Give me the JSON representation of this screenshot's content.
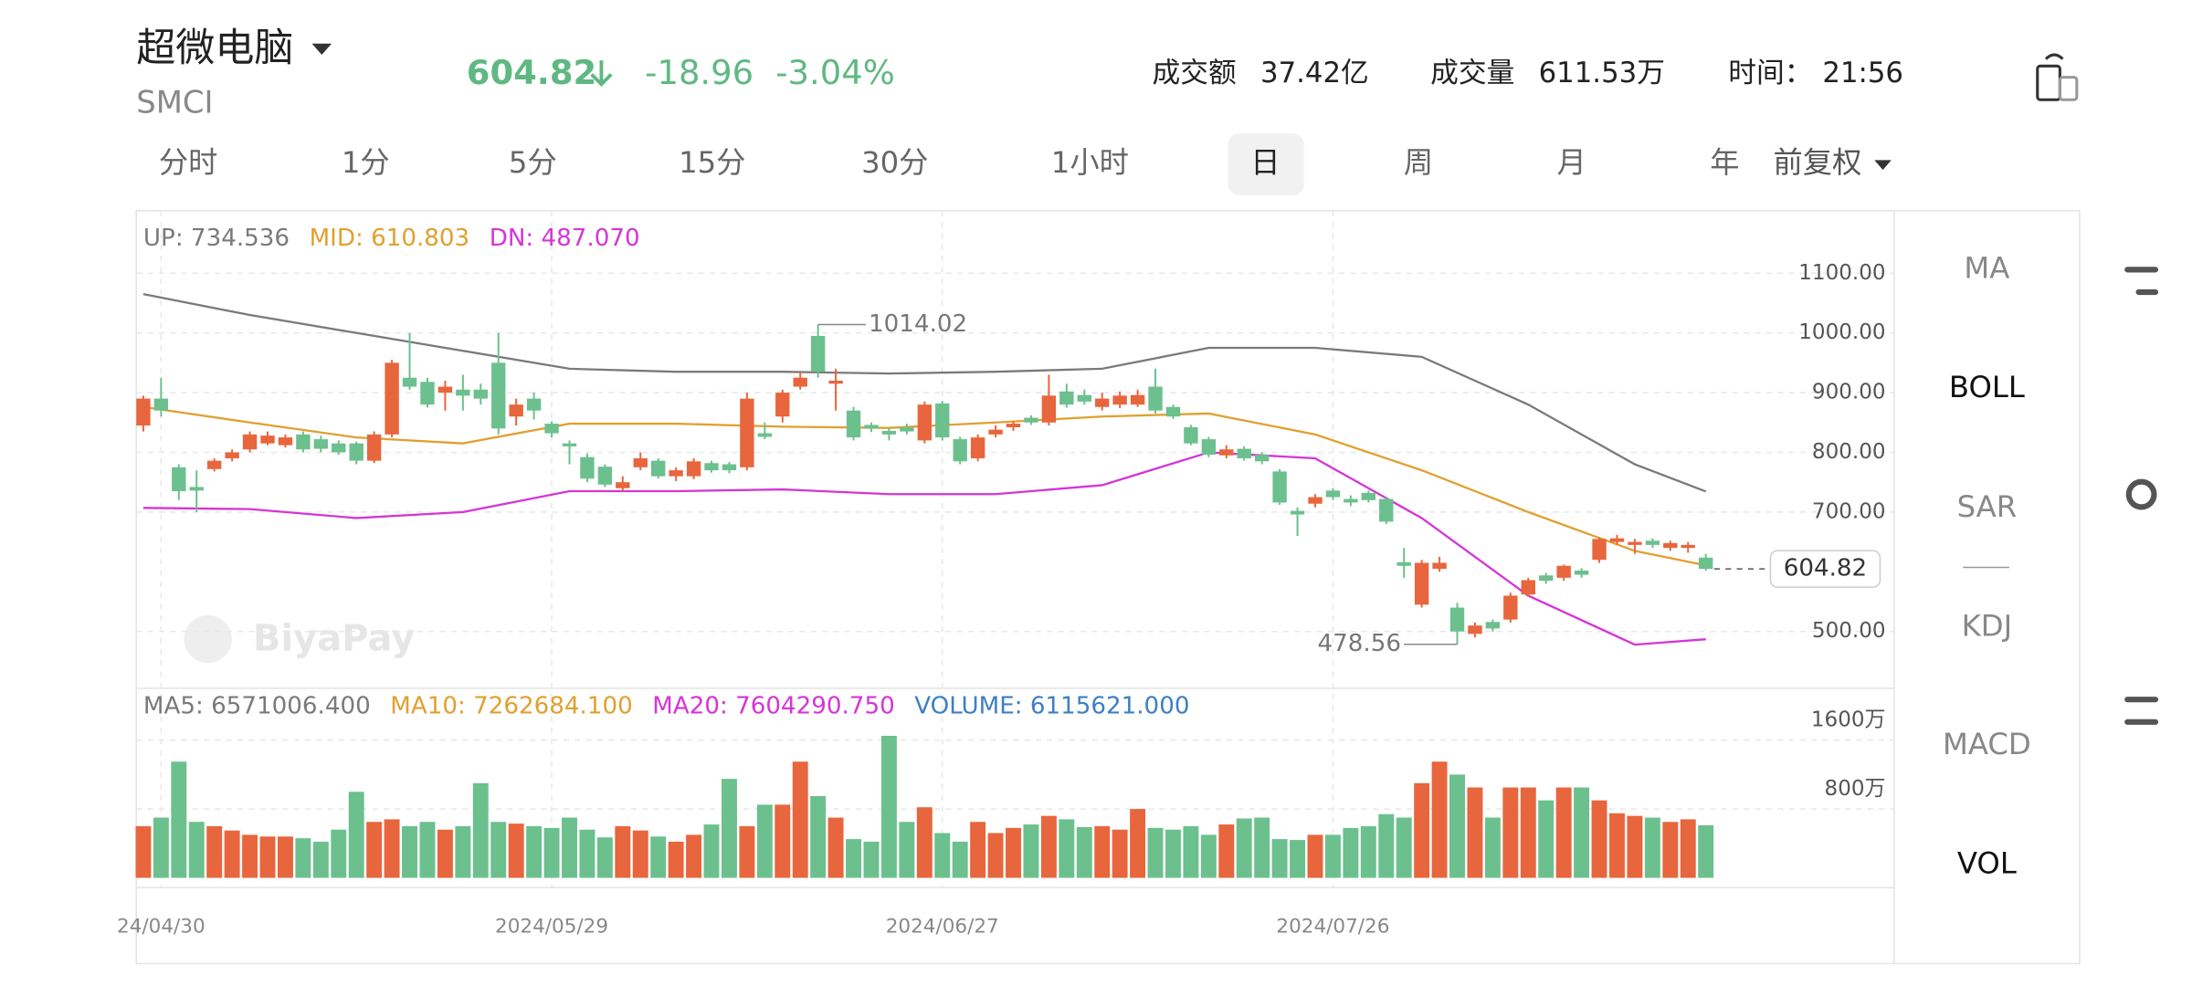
{
  "header": {
    "name": "超微电脑",
    "ticker": "SMCI",
    "price": "604.82",
    "change": "-18.96",
    "change_pct": "-3.04%",
    "turnover_label": "成交额",
    "turnover": "37.42亿",
    "volume_label": "成交量",
    "volume": "611.53万",
    "time_label": "时间：",
    "time": "21:56"
  },
  "periods": [
    "分时",
    "1分",
    "5分",
    "15分",
    "30分",
    "1小时",
    "日",
    "周",
    "月",
    "年"
  ],
  "selected_period": 6,
  "adjust": "前复权",
  "indicators": [
    "MA",
    "BOLL",
    "SAR",
    "KDJ",
    "MACD",
    "VOL"
  ],
  "active_indicators": [
    1,
    5
  ],
  "chart": {
    "boll_legend": [
      {
        "label": "UP: 734.536",
        "color": "#7a7a7a"
      },
      {
        "label": "MID: 610.803",
        "color": "#e0a030"
      },
      {
        "label": "DN: 487.070",
        "color": "#d535d5"
      }
    ],
    "watermark": "BiyaPay",
    "up_color": "#e8663d",
    "down_color": "#6cc08e",
    "ylim": [
      405,
      1200
    ],
    "yticks": [
      {
        "value": 500,
        "label": "500.00"
      },
      {
        "value": 700,
        "label": "700.00"
      },
      {
        "value": 800,
        "label": "800.00"
      },
      {
        "value": 900,
        "label": "900.00"
      },
      {
        "value": 1000,
        "label": "1000.00"
      },
      {
        "value": 1100,
        "label": "1100.00"
      }
    ],
    "candles": [
      [
        845,
        895,
        835,
        890
      ],
      [
        890,
        925,
        860,
        870
      ],
      [
        775,
        780,
        720,
        735
      ],
      [
        742,
        770,
        700,
        736
      ],
      [
        772,
        790,
        768,
        786
      ],
      [
        790,
        805,
        785,
        800
      ],
      [
        805,
        835,
        800,
        830
      ],
      [
        815,
        835,
        812,
        828
      ],
      [
        812,
        830,
        808,
        825
      ],
      [
        830,
        835,
        800,
        805
      ],
      [
        822,
        828,
        800,
        806
      ],
      [
        815,
        820,
        796,
        800
      ],
      [
        815,
        818,
        780,
        786
      ],
      [
        786,
        835,
        782,
        830
      ],
      [
        830,
        955,
        825,
        950
      ],
      [
        925,
        1000,
        905,
        910
      ],
      [
        918,
        925,
        875,
        880
      ],
      [
        900,
        920,
        870,
        910
      ],
      [
        905,
        930,
        870,
        895
      ],
      [
        905,
        915,
        880,
        890
      ],
      [
        950,
        1000,
        830,
        840
      ],
      [
        860,
        890,
        845,
        880
      ],
      [
        890,
        900,
        855,
        870
      ],
      [
        848,
        852,
        825,
        832
      ],
      [
        815,
        820,
        780,
        810
      ],
      [
        792,
        798,
        750,
        756
      ],
      [
        776,
        780,
        742,
        746
      ],
      [
        740,
        760,
        735,
        750
      ],
      [
        775,
        800,
        770,
        790
      ],
      [
        786,
        790,
        756,
        760
      ],
      [
        760,
        775,
        752,
        770
      ],
      [
        760,
        790,
        755,
        785
      ],
      [
        782,
        786,
        766,
        770
      ],
      [
        780,
        784,
        765,
        770
      ],
      [
        775,
        900,
        770,
        890
      ],
      [
        832,
        850,
        822,
        826
      ],
      [
        860,
        905,
        850,
        900
      ],
      [
        910,
        935,
        905,
        925
      ],
      [
        995,
        1014.02,
        925,
        935
      ],
      [
        915,
        940,
        870,
        920
      ],
      [
        870,
        876,
        820,
        825
      ],
      [
        846,
        850,
        834,
        840
      ],
      [
        836,
        842,
        820,
        830
      ],
      [
        842,
        848,
        830,
        835
      ],
      [
        820,
        885,
        815,
        880
      ],
      [
        882,
        886,
        820,
        825
      ],
      [
        822,
        826,
        780,
        785
      ],
      [
        790,
        830,
        785,
        825
      ],
      [
        830,
        845,
        825,
        838
      ],
      [
        842,
        852,
        836,
        848
      ],
      [
        858,
        862,
        846,
        850
      ],
      [
        850,
        930,
        845,
        895
      ],
      [
        902,
        915,
        875,
        880
      ],
      [
        896,
        905,
        880,
        885
      ],
      [
        876,
        900,
        870,
        890
      ],
      [
        880,
        902,
        874,
        895
      ],
      [
        880,
        905,
        876,
        896
      ],
      [
        910,
        940,
        865,
        870
      ],
      [
        876,
        880,
        856,
        860
      ],
      [
        842,
        846,
        812,
        815
      ],
      [
        822,
        826,
        792,
        796
      ],
      [
        795,
        812,
        790,
        805
      ],
      [
        806,
        810,
        786,
        790
      ],
      [
        796,
        800,
        780,
        785
      ],
      [
        768,
        772,
        712,
        716
      ],
      [
        702,
        708,
        660,
        696
      ],
      [
        714,
        730,
        708,
        725
      ],
      [
        736,
        740,
        720,
        725
      ],
      [
        722,
        728,
        710,
        716
      ],
      [
        732,
        736,
        716,
        720
      ],
      [
        722,
        726,
        680,
        684
      ],
      [
        616,
        640,
        590,
        610
      ],
      [
        545,
        620,
        540,
        615
      ],
      [
        605,
        625,
        600,
        615
      ],
      [
        540,
        548,
        478.56,
        500
      ],
      [
        496,
        515,
        490,
        510
      ],
      [
        516,
        520,
        500,
        505
      ],
      [
        520,
        565,
        515,
        560
      ],
      [
        562,
        590,
        558,
        586
      ],
      [
        594,
        598,
        580,
        585
      ],
      [
        590,
        612,
        585,
        610
      ],
      [
        602,
        606,
        590,
        595
      ],
      [
        620,
        658,
        615,
        655
      ],
      [
        650,
        662,
        645,
        656
      ],
      [
        645,
        655,
        630,
        650
      ],
      [
        652,
        656,
        640,
        645
      ],
      [
        640,
        652,
        635,
        648
      ],
      [
        640,
        650,
        632,
        645
      ],
      [
        623.78,
        630,
        602,
        604.82
      ]
    ],
    "max_marker": {
      "index": 38,
      "value": 1014.02
    },
    "min_marker": {
      "index": 74,
      "value": 478.56
    },
    "date_ticks": [
      {
        "index": 1,
        "label": "24/04/30"
      },
      {
        "index": 23,
        "label": "2024/05/29"
      },
      {
        "index": 45,
        "label": "2024/06/27"
      },
      {
        "index": 67,
        "label": "2024/07/26"
      }
    ],
    "boll": {
      "x": [
        0,
        6,
        12,
        18,
        24,
        30,
        36,
        42,
        48,
        54,
        60,
        66,
        72,
        78,
        84,
        88
      ],
      "up": [
        1065,
        1030,
        1000,
        970,
        940,
        935,
        935,
        932,
        935,
        940,
        975,
        975,
        960,
        880,
        780,
        734.536
      ],
      "mid": [
        876,
        850,
        825,
        815,
        848,
        848,
        843,
        841,
        850,
        860,
        865,
        830,
        770,
        700,
        635,
        610.803
      ],
      "dn": [
        707,
        705,
        690,
        700,
        735,
        735,
        738,
        730,
        730,
        745,
        800,
        790,
        690,
        560,
        478,
        487.07
      ]
    },
    "vol_legend": [
      {
        "label": "MA5: 6571006.400",
        "color": "#7a7a7a"
      },
      {
        "label": "MA10: 7262684.100",
        "color": "#e0a030"
      },
      {
        "label": "MA20: 7604290.750",
        "color": "#d535d5"
      },
      {
        "label": "VOLUME: 6115621.000",
        "color": "#3d7fc4"
      }
    ],
    "vol_ylim": [
      0,
      21700000
    ],
    "vol_yticks": [
      {
        "value": 8000000,
        "label": "800万"
      },
      {
        "value": 16000000,
        "label": "1600万"
      }
    ],
    "volumes": [
      6000000,
      7000000,
      13500000,
      6500000,
      6000000,
      5500000,
      5000000,
      4800000,
      4800000,
      4600000,
      4200000,
      5600000,
      10000000,
      6500000,
      6800000,
      6000000,
      6500000,
      5600000,
      6000000,
      11000000,
      6500000,
      6300000,
      6000000,
      5800000,
      7000000,
      5600000,
      4700000,
      6000000,
      5500000,
      4800000,
      4200000,
      5000000,
      6200000,
      11500000,
      6000000,
      8500000,
      8500000,
      13500000,
      9500000,
      7000000,
      4500000,
      4200000,
      16500000,
      6500000,
      8200000,
      5200000,
      4200000,
      6500000,
      5200000,
      5800000,
      6200000,
      7200000,
      6800000,
      5900000,
      6000000,
      5600000,
      8000000,
      5800000,
      5600000,
      6000000,
      5000000,
      6200000,
      6900000,
      7000000,
      4500000,
      4400000,
      5000000,
      5000000,
      5800000,
      6000000,
      7400000,
      7000000,
      11000000,
      13500000,
      12000000,
      10500000,
      7000000,
      10500000,
      10500000,
      9000000,
      10500000,
      10500000,
      9000000,
      7500000,
      7200000,
      7000000,
      6500000,
      6800000,
      6115621
    ]
  }
}
